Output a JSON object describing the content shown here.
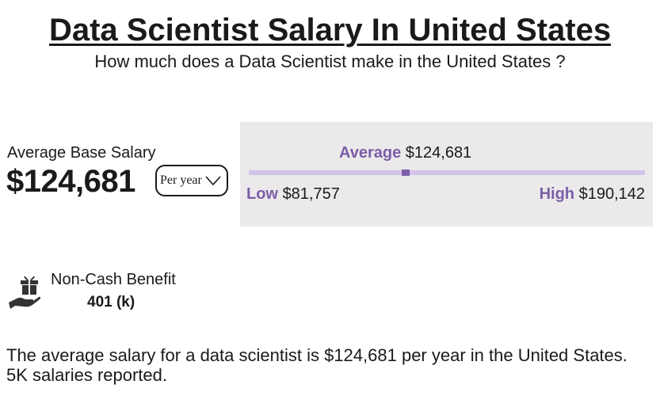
{
  "header": {
    "title": "Data Scientist Salary In United States",
    "subtitle": "How much does a Data Scientist make in the United States ?"
  },
  "salary": {
    "average_label": "Average Base Salary",
    "average_amount": "$124,681",
    "period_selected": "Per year"
  },
  "range": {
    "average_label": "Average",
    "average_value": "$124,681",
    "low_label": "Low",
    "low_value": "$81,757",
    "high_label": "High",
    "high_value": "$190,142",
    "average_fraction": 0.396
  },
  "benefit": {
    "label": "Non-Cash Benefit",
    "value": "401 (k)",
    "icon": "gift-hand-icon"
  },
  "summary": "The average salary for a data scientist is $124,681 per year in the United States. 5K salaries reported.",
  "colors": {
    "accent": "#7b5ea7",
    "track": "#d3c3ea",
    "panel": "#ebe9ea"
  }
}
